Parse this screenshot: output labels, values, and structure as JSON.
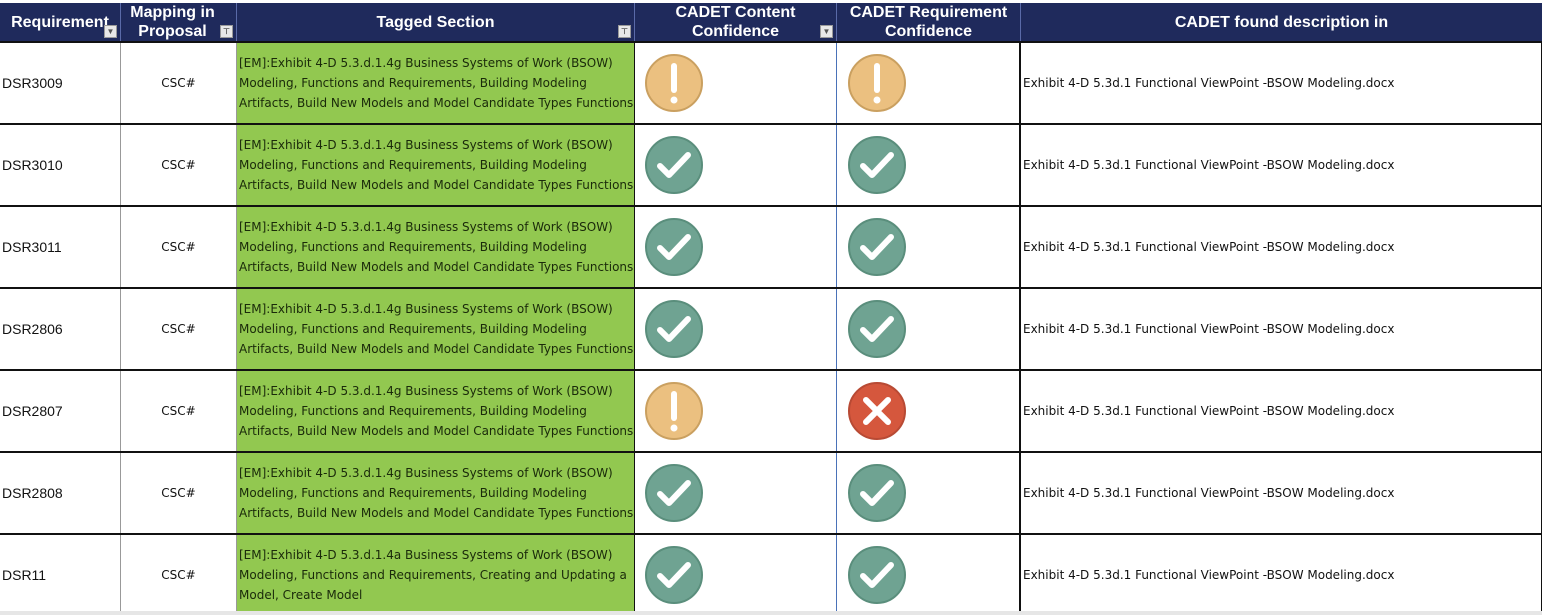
{
  "header": {
    "columns": [
      {
        "label": "Requirement",
        "filter": "dropdown"
      },
      {
        "label": "Mapping in Proposal",
        "filter": "filtered"
      },
      {
        "label": "Tagged Section",
        "filter": "filtered"
      },
      {
        "label": "CADET Content Confidence",
        "filter": "dropdown"
      },
      {
        "label": "CADET Requirement Confidence",
        "filter": "none"
      },
      {
        "label": "CADET  found description in",
        "filter": "none"
      }
    ]
  },
  "colors": {
    "header_bg": "#1f2a5c",
    "tagged_bg": "#92c850",
    "ok": "#6fa392",
    "warn": "#ebc080",
    "err": "#d5573d"
  },
  "rows": [
    {
      "requirement": "DSR3009",
      "mapping": "CSC#",
      "tagged": "[EM]:Exhibit 4-D 5.3.d.1.4g Business Systems of Work (BSOW) Modeling, Functions and Requirements, Building Modeling Artifacts, Build New Models and Model Candidate Types Functions",
      "content_conf": "warn",
      "req_conf": "warn",
      "found_in": "Exhibit 4-D 5.3d.1 Functional ViewPoint -BSOW Modeling.docx"
    },
    {
      "requirement": "DSR3010",
      "mapping": "CSC#",
      "tagged": "[EM]:Exhibit 4-D 5.3.d.1.4g Business Systems of Work (BSOW) Modeling, Functions and Requirements, Building Modeling Artifacts, Build New Models and Model Candidate Types Functions",
      "content_conf": "ok",
      "req_conf": "ok",
      "found_in": "Exhibit 4-D 5.3d.1 Functional ViewPoint -BSOW Modeling.docx"
    },
    {
      "requirement": "DSR3011",
      "mapping": "CSC#",
      "tagged": "[EM]:Exhibit 4-D 5.3.d.1.4g Business Systems of Work (BSOW) Modeling, Functions and Requirements, Building Modeling Artifacts, Build New Models and Model Candidate Types Functions",
      "content_conf": "ok",
      "req_conf": "ok",
      "found_in": "Exhibit 4-D 5.3d.1 Functional ViewPoint -BSOW Modeling.docx"
    },
    {
      "requirement": "DSR2806",
      "mapping": "CSC#",
      "tagged": "[EM]:Exhibit 4-D 5.3.d.1.4g Business Systems of Work (BSOW) Modeling, Functions and Requirements, Building Modeling Artifacts, Build New Models and Model Candidate Types Functions",
      "content_conf": "ok",
      "req_conf": "ok",
      "found_in": "Exhibit 4-D 5.3d.1 Functional ViewPoint -BSOW Modeling.docx"
    },
    {
      "requirement": "DSR2807",
      "mapping": "CSC#",
      "tagged": "[EM]:Exhibit 4-D 5.3.d.1.4g Business Systems of Work (BSOW) Modeling, Functions and Requirements, Building Modeling Artifacts, Build New Models and Model Candidate Types Functions",
      "content_conf": "warn",
      "req_conf": "err",
      "found_in": "Exhibit 4-D 5.3d.1 Functional ViewPoint -BSOW Modeling.docx"
    },
    {
      "requirement": "DSR2808",
      "mapping": "CSC#",
      "tagged": "[EM]:Exhibit 4-D 5.3.d.1.4g Business Systems of Work (BSOW) Modeling, Functions and Requirements, Building Modeling Artifacts, Build New Models and Model Candidate Types Functions",
      "content_conf": "ok",
      "req_conf": "ok",
      "found_in": "Exhibit 4-D 5.3d.1 Functional ViewPoint -BSOW Modeling.docx"
    },
    {
      "requirement": "DSR11",
      "mapping": "CSC#",
      "tagged": "[EM]:Exhibit 4-D 5.3.d.1.4a Business Systems of Work (BSOW) Modeling, Functions and Requirements, Creating and Updating a Model, Create Model",
      "content_conf": "ok",
      "req_conf": "ok",
      "found_in": "Exhibit 4-D 5.3d.1 Functional ViewPoint -BSOW Modeling.docx"
    }
  ]
}
